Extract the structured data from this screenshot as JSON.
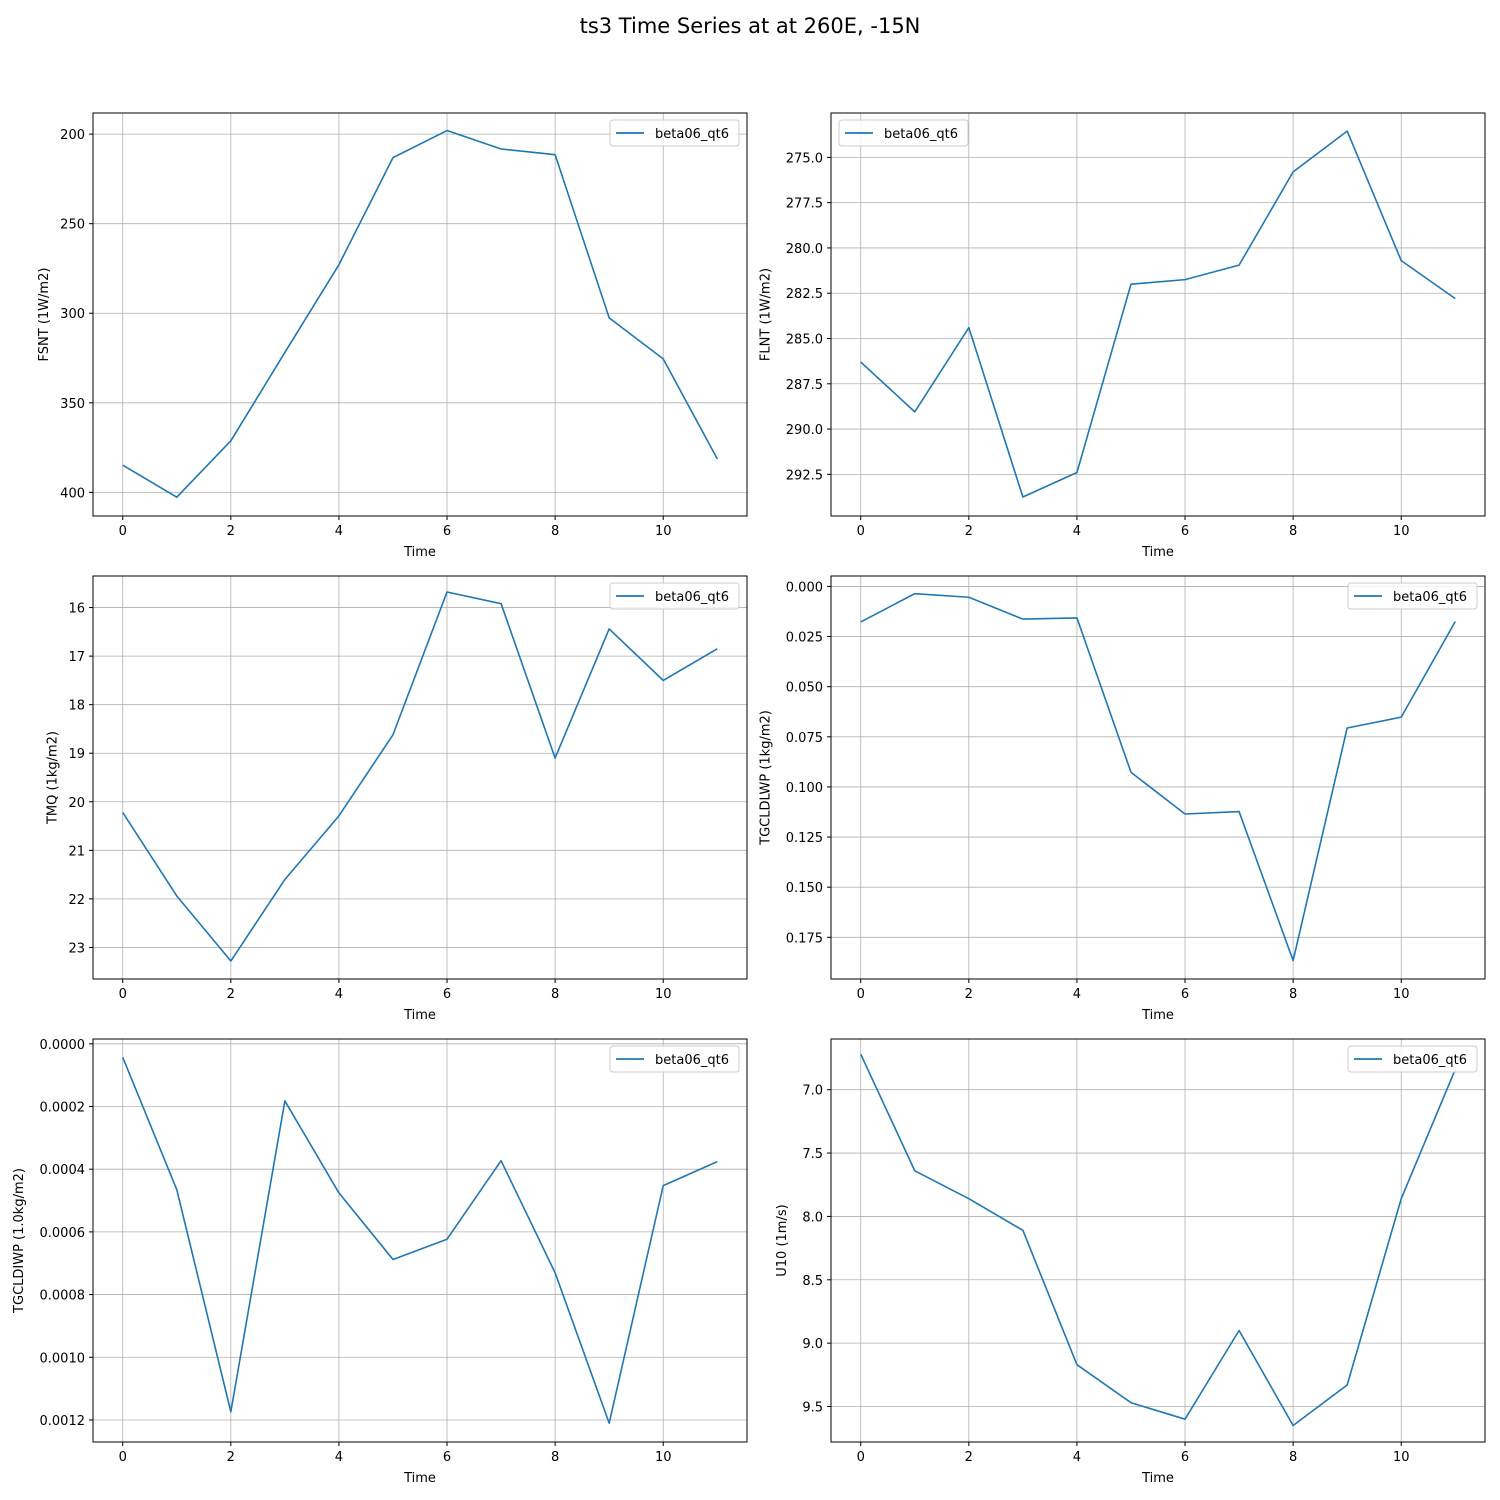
{
  "figure": {
    "title": "ts3 Time Series at at 260E, -15N"
  },
  "chart_data": [
    {
      "type": "line",
      "xlabel": "Time",
      "ylabel": "FSNT (1W/m2)",
      "y_inverted": true,
      "xlim": [
        -0.55,
        11.55
      ],
      "ylim": [
        413.2,
        188.2
      ],
      "xticks": [
        0,
        2,
        4,
        6,
        8,
        10
      ],
      "xtick_labels": [
        "0",
        "2",
        "4",
        "6",
        "8",
        "10"
      ],
      "yticks": [
        200,
        250,
        300,
        350,
        400
      ],
      "ytick_labels": [
        "200",
        "250",
        "300",
        "350",
        "400"
      ],
      "grid": true,
      "legend_position": "upper right",
      "series": [
        {
          "name": "beta06_qt6",
          "color": "#1f77b4",
          "x": [
            0,
            1,
            2,
            3,
            4,
            5,
            6,
            7,
            8,
            9,
            10,
            11
          ],
          "values": [
            384.8,
            402.7,
            371.2,
            321.9,
            272.9,
            213.1,
            198.0,
            208.3,
            211.5,
            302.6,
            325.5,
            381.3
          ]
        }
      ]
    },
    {
      "type": "line",
      "xlabel": "Time",
      "ylabel": "FLNT (1W/m2)",
      "y_inverted": true,
      "xlim": [
        -0.55,
        11.55
      ],
      "ylim": [
        294.8,
        272.55
      ],
      "xticks": [
        0,
        2,
        4,
        6,
        8,
        10
      ],
      "xtick_labels": [
        "0",
        "2",
        "4",
        "6",
        "8",
        "10"
      ],
      "yticks": [
        275.0,
        277.5,
        280.0,
        282.5,
        285.0,
        287.5,
        290.0,
        292.5
      ],
      "ytick_labels": [
        "275.0",
        "277.5",
        "280.0",
        "282.5",
        "285.0",
        "287.5",
        "290.0",
        "292.5"
      ],
      "grid": true,
      "legend_position": "upper left",
      "series": [
        {
          "name": "beta06_qt6",
          "color": "#1f77b4",
          "x": [
            0,
            1,
            2,
            3,
            4,
            5,
            6,
            7,
            8,
            9,
            10,
            11
          ],
          "values": [
            286.3,
            289.05,
            284.4,
            293.75,
            292.4,
            282.0,
            281.75,
            280.95,
            275.8,
            273.55,
            280.7,
            282.8
          ]
        }
      ]
    },
    {
      "type": "line",
      "xlabel": "Time",
      "ylabel": "TMQ (1kg/m2)",
      "y_inverted": true,
      "xlim": [
        -0.55,
        11.55
      ],
      "ylim": [
        23.65,
        15.35
      ],
      "xticks": [
        0,
        2,
        4,
        6,
        8,
        10
      ],
      "xtick_labels": [
        "0",
        "2",
        "4",
        "6",
        "8",
        "10"
      ],
      "yticks": [
        16,
        17,
        18,
        19,
        20,
        21,
        22,
        23
      ],
      "ytick_labels": [
        "16",
        "17",
        "18",
        "19",
        "20",
        "21",
        "22",
        "23"
      ],
      "grid": true,
      "legend_position": "upper right",
      "series": [
        {
          "name": "beta06_qt6",
          "color": "#1f77b4",
          "x": [
            0,
            1,
            2,
            3,
            4,
            5,
            6,
            7,
            8,
            9,
            10,
            11
          ],
          "values": [
            20.22,
            21.94,
            23.28,
            21.6,
            20.29,
            18.62,
            15.68,
            15.92,
            19.1,
            16.44,
            17.5,
            16.85
          ]
        }
      ]
    },
    {
      "type": "line",
      "xlabel": "Time",
      "ylabel": "TGCLDLWP (1kg/m2)",
      "y_inverted": true,
      "xlim": [
        -0.55,
        11.55
      ],
      "ylim": [
        0.1958,
        -0.0052
      ],
      "xticks": [
        0,
        2,
        4,
        6,
        8,
        10
      ],
      "xtick_labels": [
        "0",
        "2",
        "4",
        "6",
        "8",
        "10"
      ],
      "yticks": [
        0.0,
        0.025,
        0.05,
        0.075,
        0.1,
        0.125,
        0.15,
        0.175
      ],
      "ytick_labels": [
        "0.000",
        "0.025",
        "0.050",
        "0.075",
        "0.100",
        "0.125",
        "0.150",
        "0.175"
      ],
      "grid": true,
      "legend_position": "upper right",
      "series": [
        {
          "name": "beta06_qt6",
          "color": "#1f77b4",
          "x": [
            0,
            1,
            2,
            3,
            4,
            5,
            6,
            7,
            8,
            9,
            10,
            11
          ],
          "values": [
            0.0177,
            0.0036,
            0.0054,
            0.0163,
            0.0157,
            0.0927,
            0.1135,
            0.1123,
            0.1866,
            0.0706,
            0.0652,
            0.0175
          ]
        }
      ]
    },
    {
      "type": "line",
      "xlabel": "Time",
      "ylabel": "TGCLDIWP (1.0kg/m2)",
      "y_inverted": true,
      "xlim": [
        -0.55,
        11.55
      ],
      "ylim": [
        0.0012703,
        -1.54e-05
      ],
      "xticks": [
        0,
        2,
        4,
        6,
        8,
        10
      ],
      "xtick_labels": [
        "0",
        "2",
        "4",
        "6",
        "8",
        "10"
      ],
      "yticks": [
        0.0,
        0.0002,
        0.0004,
        0.0006,
        0.0008,
        0.001,
        0.0012
      ],
      "ytick_labels": [
        "0.0000",
        "0.0002",
        "0.0004",
        "0.0006",
        "0.0008",
        "0.0010",
        "0.0012"
      ],
      "grid": true,
      "legend_position": "upper right",
      "series": [
        {
          "name": "beta06_qt6",
          "color": "#1f77b4",
          "x": [
            0,
            1,
            2,
            3,
            4,
            5,
            6,
            7,
            8,
            9,
            10,
            11
          ],
          "values": [
            4.29e-05,
            0.0004653,
            0.0011739,
            0.0001821,
            0.0004757,
            0.0006879,
            0.0006233,
            0.0003729,
            0.0007306,
            0.0012102,
            0.0004524,
            0.0003757
          ]
        }
      ]
    },
    {
      "type": "line",
      "xlabel": "Time",
      "ylabel": "U10 (1m/s)",
      "y_inverted": true,
      "xlim": [
        -0.55,
        11.55
      ],
      "ylim": [
        9.78,
        6.6
      ],
      "xticks": [
        0,
        2,
        4,
        6,
        8,
        10
      ],
      "xtick_labels": [
        "0",
        "2",
        "4",
        "6",
        "8",
        "10"
      ],
      "yticks": [
        7.0,
        7.5,
        8.0,
        8.5,
        9.0,
        9.5
      ],
      "ytick_labels": [
        "7.0",
        "7.5",
        "8.0",
        "8.5",
        "9.0",
        "9.5"
      ],
      "grid": true,
      "legend_position": "upper right",
      "series": [
        {
          "name": "beta06_qt6",
          "color": "#1f77b4",
          "x": [
            0,
            1,
            2,
            3,
            4,
            5,
            6,
            7,
            8,
            9,
            10,
            11
          ],
          "values": [
            6.72,
            7.64,
            7.86,
            8.11,
            9.17,
            9.47,
            9.6,
            8.9,
            9.65,
            9.33,
            7.86,
            6.84
          ]
        }
      ]
    }
  ]
}
